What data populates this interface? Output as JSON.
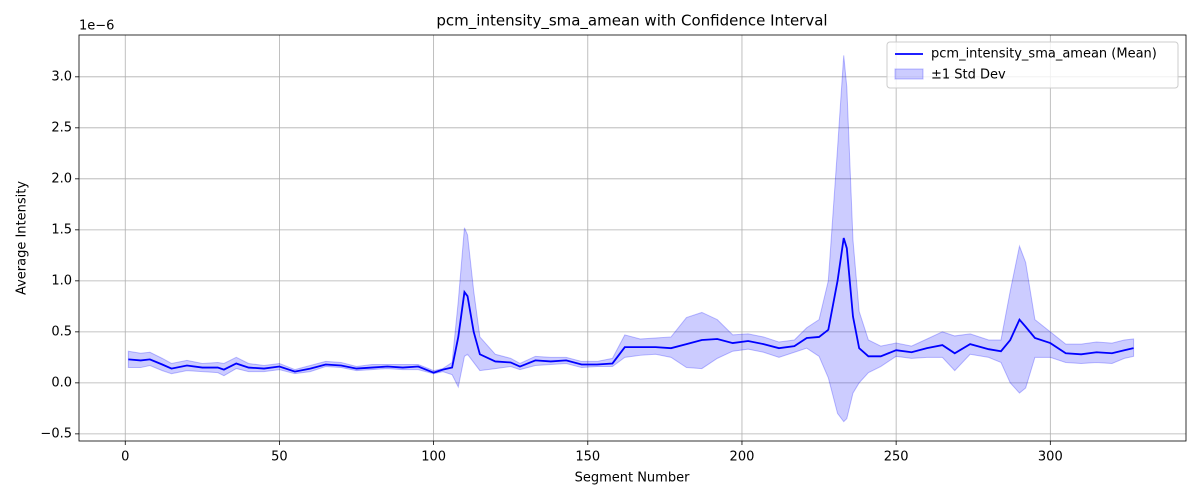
{
  "chart_data": {
    "type": "line",
    "title": "pcm_intensity_sma_amean with Confidence Interval",
    "xlabel": "Segment Number",
    "ylabel": "Average Intensity",
    "y_offset_label": "1e−6",
    "x": [
      1,
      5,
      8,
      12,
      15,
      20,
      25,
      30,
      32,
      36,
      40,
      45,
      50,
      55,
      60,
      65,
      70,
      75,
      80,
      85,
      90,
      95,
      100,
      103,
      106,
      108,
      110,
      111,
      113,
      115,
      120,
      125,
      128,
      133,
      138,
      143,
      148,
      153,
      158,
      162,
      167,
      172,
      177,
      182,
      187,
      192,
      197,
      202,
      207,
      212,
      217,
      221,
      225,
      228,
      231,
      233,
      234,
      236,
      238,
      241,
      245,
      250,
      255,
      260,
      265,
      269,
      274,
      280,
      284,
      287,
      290,
      292,
      295,
      300,
      305,
      310,
      315,
      320,
      324,
      327
    ],
    "series": [
      {
        "name": "pcm_intensity_sma_amean (Mean)",
        "color": "#0000ff",
        "values": [
          0.23,
          0.22,
          0.23,
          0.18,
          0.14,
          0.17,
          0.15,
          0.15,
          0.13,
          0.19,
          0.15,
          0.14,
          0.16,
          0.11,
          0.14,
          0.18,
          0.17,
          0.14,
          0.15,
          0.16,
          0.15,
          0.16,
          0.1,
          0.13,
          0.15,
          0.45,
          0.89,
          0.85,
          0.5,
          0.28,
          0.21,
          0.2,
          0.16,
          0.22,
          0.21,
          0.22,
          0.18,
          0.18,
          0.19,
          0.35,
          0.35,
          0.35,
          0.34,
          0.38,
          0.42,
          0.43,
          0.39,
          0.41,
          0.38,
          0.34,
          0.36,
          0.44,
          0.45,
          0.52,
          1.0,
          1.42,
          1.32,
          0.65,
          0.34,
          0.26,
          0.26,
          0.32,
          0.3,
          0.34,
          0.37,
          0.29,
          0.38,
          0.33,
          0.31,
          0.42,
          0.62,
          0.55,
          0.44,
          0.39,
          0.29,
          0.28,
          0.3,
          0.29,
          0.32,
          0.34
        ]
      }
    ],
    "band": {
      "name": "±1 Std Dev",
      "color": "#0000ff",
      "lower": [
        0.15,
        0.15,
        0.17,
        0.12,
        0.09,
        0.12,
        0.11,
        0.1,
        0.07,
        0.14,
        0.11,
        0.11,
        0.13,
        0.09,
        0.11,
        0.16,
        0.15,
        0.12,
        0.13,
        0.14,
        0.13,
        0.13,
        0.09,
        0.11,
        0.08,
        -0.04,
        0.26,
        0.28,
        0.2,
        0.12,
        0.14,
        0.16,
        0.13,
        0.17,
        0.18,
        0.19,
        0.15,
        0.16,
        0.16,
        0.25,
        0.27,
        0.28,
        0.25,
        0.15,
        0.14,
        0.24,
        0.31,
        0.33,
        0.3,
        0.25,
        0.3,
        0.34,
        0.26,
        0.05,
        -0.3,
        -0.38,
        -0.35,
        -0.1,
        0.0,
        0.1,
        0.16,
        0.26,
        0.24,
        0.25,
        0.25,
        0.12,
        0.28,
        0.25,
        0.2,
        0.0,
        -0.1,
        -0.05,
        0.25,
        0.25,
        0.2,
        0.19,
        0.2,
        0.19,
        0.24,
        0.26
      ],
      "upper": [
        0.31,
        0.29,
        0.3,
        0.24,
        0.19,
        0.22,
        0.19,
        0.2,
        0.19,
        0.25,
        0.19,
        0.17,
        0.19,
        0.13,
        0.17,
        0.21,
        0.2,
        0.16,
        0.18,
        0.18,
        0.18,
        0.18,
        0.12,
        0.14,
        0.2,
        0.8,
        1.52,
        1.45,
        0.9,
        0.45,
        0.28,
        0.24,
        0.19,
        0.26,
        0.25,
        0.25,
        0.21,
        0.21,
        0.24,
        0.47,
        0.43,
        0.44,
        0.45,
        0.64,
        0.69,
        0.62,
        0.47,
        0.48,
        0.45,
        0.4,
        0.42,
        0.54,
        0.62,
        1.0,
        2.3,
        3.21,
        2.9,
        1.4,
        0.7,
        0.42,
        0.36,
        0.39,
        0.36,
        0.43,
        0.5,
        0.46,
        0.48,
        0.42,
        0.42,
        0.9,
        1.34,
        1.18,
        0.62,
        0.5,
        0.38,
        0.38,
        0.4,
        0.39,
        0.42,
        0.43
      ]
    },
    "xlim": [
      -15,
      344
    ],
    "ylim": [
      -0.57,
      3.41
    ],
    "xticks": [
      0,
      50,
      100,
      150,
      200,
      250,
      300
    ],
    "yticks": [
      {
        "value": -0.5,
        "label": "−0.5"
      },
      {
        "value": 0,
        "label": "0.0"
      },
      0.5,
      {
        "value": 1,
        "label": "1.0"
      },
      1.5,
      {
        "value": 2,
        "label": "2.0"
      },
      2.5,
      {
        "value": 3,
        "label": "3.0"
      }
    ],
    "grid": true,
    "legend": "upper right"
  }
}
